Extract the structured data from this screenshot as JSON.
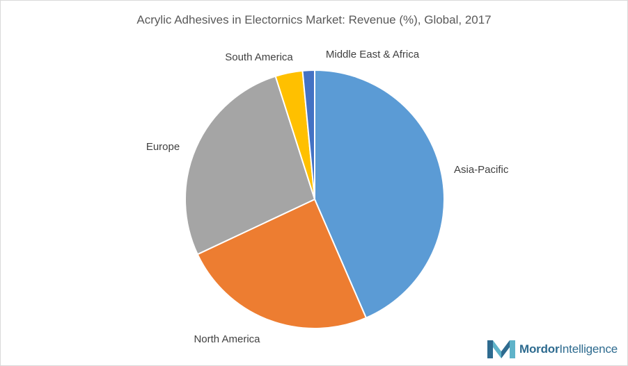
{
  "chart_data": {
    "type": "pie",
    "title": "Acrylic Adhesives in Electornics Market: Revenue (%), Global, 2017",
    "categories": [
      "Asia-Pacific",
      "North America",
      "Europe",
      "South America",
      "Middle East & Africa"
    ],
    "values": [
      43.5,
      24.5,
      27.1,
      3.4,
      1.5
    ],
    "colors": [
      "#5b9bd5",
      "#ed7d31",
      "#a5a5a5",
      "#ffc000",
      "#4472c4"
    ],
    "unit": "%",
    "legend": "none",
    "start_angle_deg": 0,
    "direction": "clockwise"
  },
  "branding": {
    "logo_bold": "Mordor",
    "logo_regular": "Intelligence",
    "logo_icon": "mordor-intelligence-logo-icon"
  }
}
